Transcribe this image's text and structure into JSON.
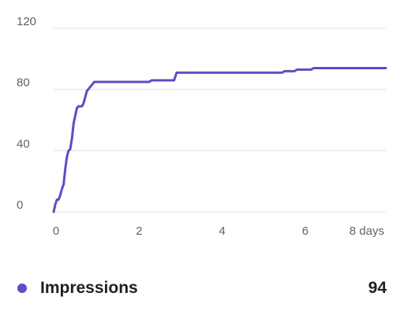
{
  "chart_data": {
    "type": "line",
    "x_unit_label": "days",
    "xlim": [
      0,
      8
    ],
    "ylim": [
      0,
      120
    ],
    "x_ticks": [
      {
        "value": 0,
        "label": "0"
      },
      {
        "value": 2,
        "label": "2"
      },
      {
        "value": 4,
        "label": "4"
      },
      {
        "value": 6,
        "label": "6"
      },
      {
        "value": 8,
        "label": "8 days"
      }
    ],
    "y_ticks": [
      {
        "value": 0,
        "label": "0"
      },
      {
        "value": 40,
        "label": "40"
      },
      {
        "value": 80,
        "label": "80"
      },
      {
        "value": 120,
        "label": "120"
      }
    ],
    "grid": true,
    "legend_position": "bottom",
    "series": [
      {
        "name": "Impressions",
        "color": "#5b4ec4",
        "total": "94",
        "points": [
          [
            0,
            0
          ],
          [
            0.04,
            5
          ],
          [
            0.08,
            8
          ],
          [
            0.12,
            8
          ],
          [
            0.16,
            11
          ],
          [
            0.2,
            15
          ],
          [
            0.24,
            18
          ],
          [
            0.28,
            28
          ],
          [
            0.32,
            36
          ],
          [
            0.36,
            40
          ],
          [
            0.4,
            41
          ],
          [
            0.44,
            48
          ],
          [
            0.48,
            58
          ],
          [
            0.52,
            63
          ],
          [
            0.56,
            68
          ],
          [
            0.6,
            69
          ],
          [
            0.68,
            69
          ],
          [
            0.72,
            71
          ],
          [
            0.76,
            75
          ],
          [
            0.8,
            79
          ],
          [
            0.86,
            81
          ],
          [
            0.92,
            83
          ],
          [
            0.98,
            85
          ],
          [
            1.04,
            85
          ],
          [
            2.0,
            85
          ],
          [
            2.3,
            85
          ],
          [
            2.36,
            86
          ],
          [
            2.9,
            86
          ],
          [
            2.96,
            91
          ],
          [
            4.0,
            91
          ],
          [
            5.5,
            91
          ],
          [
            5.56,
            92
          ],
          [
            5.8,
            92
          ],
          [
            5.86,
            93
          ],
          [
            6.2,
            93
          ],
          [
            6.26,
            94
          ],
          [
            8,
            94
          ]
        ]
      }
    ]
  }
}
